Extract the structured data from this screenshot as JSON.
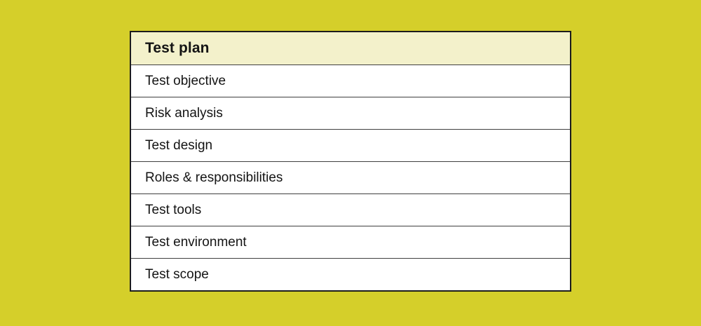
{
  "table": {
    "header": "Test plan",
    "rows": [
      "Test objective",
      "Risk analysis",
      "Test design",
      "Roles & responsibilities",
      "Test tools",
      "Test environment",
      "Test scope"
    ]
  },
  "colors": {
    "background": "#d5cf2a",
    "header_background": "#f3f1cb",
    "row_background": "#ffffff",
    "outer_border": "#1c1c1c",
    "separator": "#3f3f3f",
    "text": "#141414"
  }
}
